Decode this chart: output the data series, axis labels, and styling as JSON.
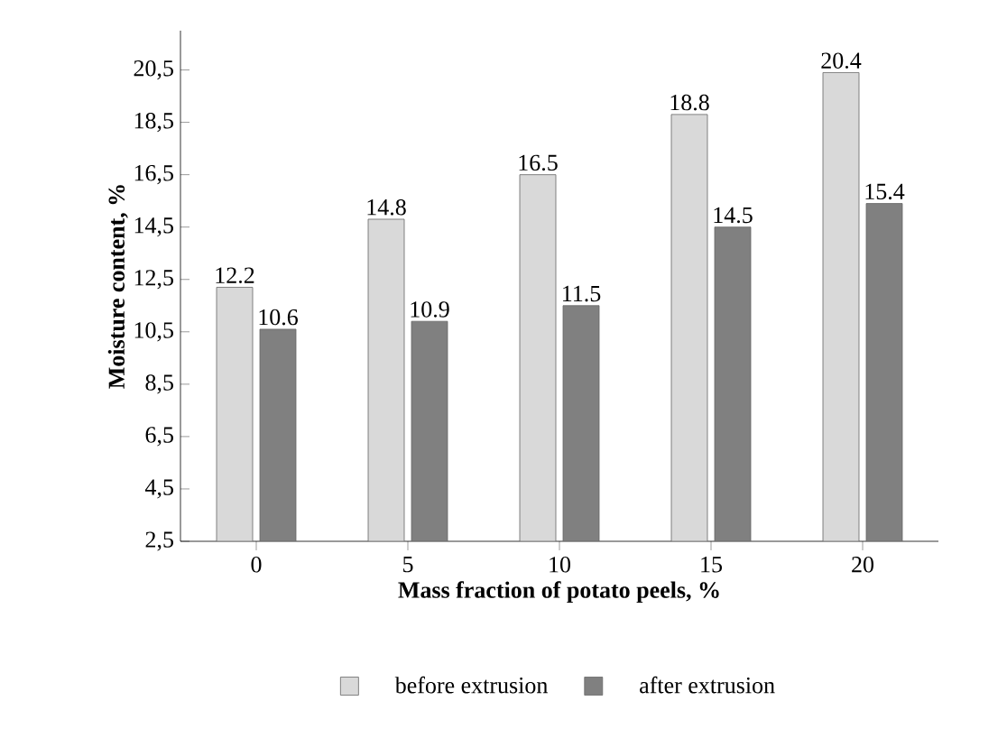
{
  "chart_data": {
    "type": "bar",
    "xlabel": "Mass fraction of potato peels, %",
    "ylabel": "Moisture content, %",
    "categories": [
      "0",
      "5",
      "10",
      "15",
      "20"
    ],
    "series": [
      {
        "name": "before extrusion",
        "color": "#d9d9d9",
        "values": [
          12.2,
          14.8,
          16.5,
          18.8,
          20.4
        ]
      },
      {
        "name": "after extrusion",
        "color": "#808080",
        "values": [
          10.6,
          10.9,
          11.5,
          14.5,
          15.4
        ]
      }
    ],
    "ylim": [
      2.5,
      22
    ],
    "yticks": [
      {
        "value": 2.5,
        "label": "2,5"
      },
      {
        "value": 4.5,
        "label": "4,5"
      },
      {
        "value": 6.5,
        "label": "6,5"
      },
      {
        "value": 8.5,
        "label": "8,5"
      },
      {
        "value": 10.5,
        "label": "10,5"
      },
      {
        "value": 12.5,
        "label": "12,5"
      },
      {
        "value": 14.5,
        "label": "14,5"
      },
      {
        "value": 16.5,
        "label": "16,5"
      },
      {
        "value": 18.5,
        "label": "18,5"
      },
      {
        "value": 20.5,
        "label": "20,5"
      }
    ],
    "data_labels": true,
    "legend": "bottom",
    "grid": false
  }
}
